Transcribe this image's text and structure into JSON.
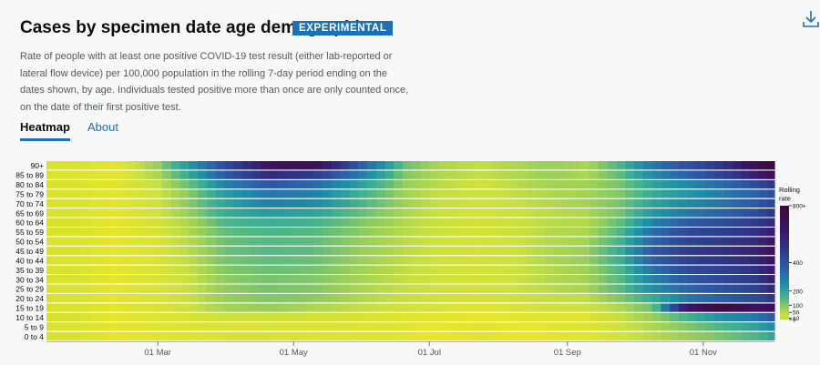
{
  "header": {
    "title": "Cases by specimen date age demographics",
    "badge": "EXPERIMENTAL",
    "download_icon": "download-icon"
  },
  "description": "Rate of people with at least one positive COVID-19 test result (either lab-reported or lateral flow device) per 100,000 population in the rolling 7-day period ending on the dates shown, by age. Individuals tested positive more than once are only counted once, on the date of their first positive test.",
  "tabs": [
    {
      "label": "Heatmap",
      "active": true
    },
    {
      "label": "About",
      "active": false
    }
  ],
  "chart_data": {
    "type": "heatmap",
    "y_categories": [
      "90+",
      "85 to 89",
      "80 to 84",
      "75 to 79",
      "70 to 74",
      "65 to 69",
      "60 to 64",
      "55 to 59",
      "50 to 54",
      "45 to 49",
      "40 to 44",
      "35 to 39",
      "30 to 34",
      "25 to 29",
      "20 to 24",
      "15 to 19",
      "10 to 14",
      "5 to 9",
      "0 to 4"
    ],
    "x_start": "2021-01-10",
    "x_end": "2021-12-03",
    "x_ticks": [
      {
        "date": "2021-03-01",
        "label": "01 Mar"
      },
      {
        "date": "2021-05-01",
        "label": "01 May"
      },
      {
        "date": "2021-07-01",
        "label": "01 Jul"
      },
      {
        "date": "2021-09-01",
        "label": "01 Sep"
      },
      {
        "date": "2021-11-01",
        "label": "01 Nov"
      }
    ],
    "keyframes": [
      "2021-01-10",
      "2021-01-24",
      "2021-02-05",
      "2021-02-16",
      "2021-03-01",
      "2021-03-15",
      "2021-04-01",
      "2021-04-20",
      "2021-05-10",
      "2021-06-01",
      "2021-06-20",
      "2021-07-05",
      "2021-07-25",
      "2021-08-10",
      "2021-08-25",
      "2021-09-10",
      "2021-09-25",
      "2021-10-10",
      "2021-10-25",
      "2021-11-10",
      "2021-11-25",
      "2021-12-03"
    ],
    "rows": [
      [
        5,
        5,
        8,
        20,
        80,
        220,
        420,
        650,
        700,
        350,
        120,
        60,
        40,
        60,
        80,
        60,
        150,
        300,
        400,
        500,
        700,
        780
      ],
      [
        5,
        5,
        8,
        20,
        60,
        180,
        380,
        550,
        480,
        280,
        100,
        60,
        40,
        60,
        80,
        60,
        130,
        260,
        350,
        450,
        600,
        700
      ],
      [
        5,
        5,
        8,
        20,
        40,
        120,
        280,
        380,
        330,
        200,
        80,
        50,
        30,
        50,
        70,
        70,
        110,
        200,
        260,
        330,
        420,
        500
      ],
      [
        5,
        5,
        8,
        18,
        30,
        90,
        220,
        300,
        280,
        160,
        70,
        40,
        30,
        45,
        60,
        70,
        100,
        180,
        230,
        290,
        350,
        420
      ],
      [
        5,
        5,
        8,
        15,
        30,
        90,
        200,
        280,
        260,
        150,
        70,
        40,
        30,
        40,
        55,
        70,
        110,
        200,
        260,
        310,
        380,
        450
      ],
      [
        5,
        5,
        8,
        15,
        30,
        80,
        180,
        220,
        200,
        120,
        60,
        35,
        25,
        35,
        50,
        60,
        110,
        230,
        300,
        350,
        420,
        500
      ],
      [
        5,
        5,
        8,
        15,
        25,
        60,
        150,
        170,
        160,
        100,
        55,
        35,
        25,
        35,
        50,
        55,
        130,
        280,
        370,
        420,
        480,
        550
      ],
      [
        5,
        5,
        8,
        14,
        22,
        55,
        130,
        150,
        140,
        90,
        50,
        35,
        25,
        35,
        55,
        60,
        150,
        330,
        430,
        470,
        520,
        620
      ],
      [
        5,
        5,
        8,
        14,
        20,
        50,
        120,
        140,
        130,
        80,
        50,
        30,
        25,
        35,
        55,
        70,
        160,
        350,
        450,
        490,
        550,
        650
      ],
      [
        5,
        5,
        8,
        14,
        20,
        50,
        120,
        140,
        130,
        80,
        50,
        30,
        25,
        35,
        60,
        80,
        180,
        380,
        480,
        520,
        580,
        680
      ],
      [
        5,
        5,
        8,
        14,
        20,
        45,
        110,
        130,
        120,
        75,
        45,
        30,
        25,
        35,
        60,
        80,
        170,
        360,
        460,
        500,
        560,
        660
      ],
      [
        5,
        5,
        8,
        14,
        20,
        40,
        100,
        120,
        110,
        70,
        45,
        30,
        25,
        35,
        55,
        75,
        150,
        320,
        420,
        460,
        520,
        620
      ],
      [
        5,
        5,
        8,
        14,
        20,
        35,
        90,
        110,
        100,
        65,
        40,
        30,
        25,
        35,
        55,
        70,
        140,
        280,
        380,
        430,
        500,
        600
      ],
      [
        5,
        5,
        8,
        14,
        20,
        35,
        85,
        110,
        100,
        60,
        40,
        30,
        25,
        35,
        50,
        65,
        140,
        250,
        340,
        400,
        460,
        560
      ],
      [
        5,
        5,
        8,
        14,
        18,
        35,
        80,
        100,
        90,
        55,
        35,
        25,
        20,
        30,
        40,
        45,
        100,
        180,
        300,
        360,
        420,
        500
      ],
      [
        5,
        5,
        8,
        14,
        18,
        30,
        70,
        80,
        60,
        40,
        25,
        20,
        15,
        20,
        30,
        30,
        60,
        120,
        650,
        780,
        650,
        680
      ],
      [
        5,
        5,
        8,
        14,
        15,
        20,
        30,
        30,
        25,
        20,
        15,
        12,
        10,
        12,
        15,
        15,
        40,
        80,
        160,
        250,
        300,
        380
      ],
      [
        5,
        5,
        8,
        12,
        12,
        15,
        20,
        20,
        18,
        15,
        12,
        10,
        8,
        10,
        12,
        12,
        30,
        60,
        100,
        150,
        200,
        260
      ],
      [
        5,
        5,
        8,
        12,
        12,
        15,
        20,
        20,
        18,
        15,
        12,
        10,
        8,
        10,
        12,
        12,
        25,
        50,
        80,
        110,
        150,
        200
      ]
    ],
    "legend": {
      "title": [
        "Rolling",
        "rate"
      ],
      "placement": "right",
      "ticks": [
        {
          "value": 800,
          "label": "800+"
        },
        {
          "value": 400,
          "label": "400"
        },
        {
          "value": 200,
          "label": "200"
        },
        {
          "value": 100,
          "label": "100"
        },
        {
          "value": 50,
          "label": "50"
        },
        {
          "value": 10,
          "label": "10"
        },
        {
          "value": 0,
          "label": "0"
        }
      ],
      "scale": "sqrt",
      "max": 800
    },
    "colors": [
      "#b9dd35",
      "#e6e52a",
      "#c7df42",
      "#8fcb5f",
      "#43b28e",
      "#1f8fa6",
      "#2d5fa8",
      "#2e3a8a",
      "#3c1466",
      "#3e0a3c"
    ]
  }
}
